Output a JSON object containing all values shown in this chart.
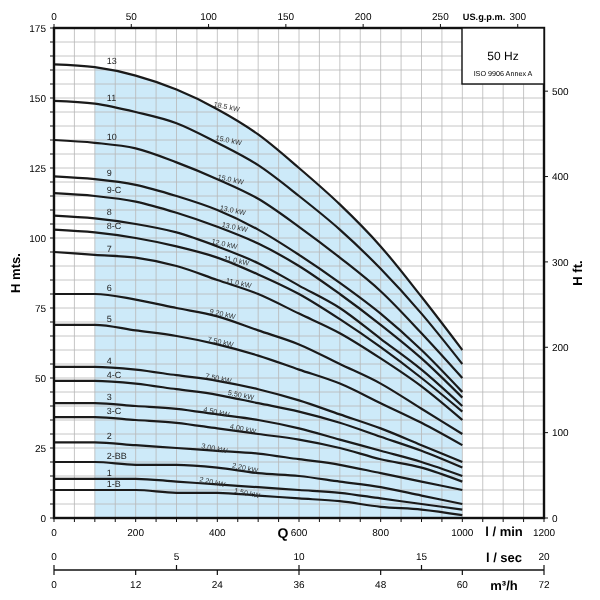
{
  "chart_data": {
    "type": "line",
    "subtitle": "50 Hz",
    "xlabel": "l / min",
    "ylabel": "H mts.",
    "y2label": "H ft.",
    "x2label": "US.g.p.m.",
    "x": [
      0,
      100,
      200,
      300,
      400,
      500,
      600,
      700,
      800,
      900,
      1000
    ],
    "series": [
      {
        "name": "13",
        "color": "#1a1a1a",
        "values": [
          162,
          161,
          158,
          153,
          146,
          137,
          125,
          112,
          97,
          79,
          60
        ]
      },
      {
        "name": "11",
        "color": "#1a1a1a",
        "values": [
          149,
          148,
          145,
          141,
          134,
          126,
          115,
          103,
          89,
          73,
          55
        ]
      },
      {
        "name": "10",
        "color": "#1a1a1a",
        "values": [
          135,
          134,
          132,
          127,
          121,
          114,
          104,
          93,
          81,
          66,
          50
        ]
      },
      {
        "name": "9",
        "color": "#1a1a1a",
        "values": [
          122,
          121,
          119,
          115,
          110,
          103,
          94,
          84,
          73,
          60,
          45
        ]
      },
      {
        "name": "9-C",
        "color": "#1a1a1a",
        "values": [
          116,
          115,
          113,
          109,
          104,
          98,
          90,
          80,
          69,
          57,
          43
        ]
      },
      {
        "name": "8",
        "color": "#1a1a1a",
        "values": [
          108,
          107,
          105,
          102,
          97,
          91,
          83,
          75,
          64,
          53,
          40
        ]
      },
      {
        "name": "8-C",
        "color": "#1a1a1a",
        "values": [
          103,
          102,
          100,
          97,
          93,
          87,
          80,
          71,
          61,
          50,
          38
        ]
      },
      {
        "name": "7",
        "color": "#1a1a1a",
        "values": [
          95,
          94,
          93,
          90,
          85,
          80,
          73,
          66,
          57,
          47,
          35
        ]
      },
      {
        "name": "6",
        "color": "#1a1a1a",
        "values": [
          80,
          80,
          78,
          75,
          72,
          67,
          62,
          55,
          48,
          39,
          30
        ]
      },
      {
        "name": "5",
        "color": "#1a1a1a",
        "values": [
          69,
          69,
          67,
          65,
          62,
          58,
          53,
          48,
          41,
          34,
          26
        ]
      },
      {
        "name": "4",
        "color": "#1a1a1a",
        "values": [
          54,
          54,
          53,
          51,
          49,
          46,
          42,
          37,
          32,
          26,
          20
        ]
      },
      {
        "name": "4-C",
        "color": "#1a1a1a",
        "values": [
          49,
          49,
          48,
          46,
          44,
          41,
          38,
          34,
          29,
          24,
          18
        ]
      },
      {
        "name": "3",
        "color": "#1a1a1a",
        "values": [
          41,
          41,
          40,
          39,
          37,
          35,
          32,
          28,
          24,
          20,
          15
        ]
      },
      {
        "name": "3-C",
        "color": "#1a1a1a",
        "values": [
          36,
          36,
          35,
          34,
          32,
          30,
          28,
          25,
          21,
          18,
          13
        ]
      },
      {
        "name": "2",
        "color": "#1a1a1a",
        "values": [
          27,
          27,
          26,
          25,
          24,
          23,
          21,
          19,
          16,
          13,
          10
        ]
      },
      {
        "name": "2-BB",
        "color": "#1a1a1a",
        "values": [
          20,
          20,
          19,
          19,
          18,
          16,
          15,
          13,
          11,
          8,
          5
        ]
      },
      {
        "name": "1",
        "color": "#1a1a1a",
        "values": [
          14,
          14,
          14,
          13,
          12,
          11,
          10,
          9,
          7,
          5,
          3
        ]
      },
      {
        "name": "1-B",
        "color": "#1a1a1a",
        "values": [
          10,
          10,
          10,
          9,
          9,
          8,
          7,
          6,
          4,
          3,
          1
        ]
      }
    ],
    "bands": [
      {
        "axis": "x",
        "from": 100,
        "to": 1000,
        "color": "#cdeaf9"
      }
    ],
    "xlim": [
      0,
      1200
    ],
    "xticks": [
      0,
      {
        "value": 50,
        "label": null
      },
      {
        "value": 100,
        "label": null
      },
      {
        "value": 150,
        "label": null
      },
      200,
      {
        "value": 250,
        "label": null
      },
      {
        "value": 300,
        "label": null
      },
      {
        "value": 350,
        "label": null
      },
      400,
      {
        "value": 450,
        "label": null
      },
      {
        "value": 500,
        "label": null
      },
      {
        "value": 550,
        "label": null
      },
      600,
      {
        "value": 650,
        "label": null
      },
      {
        "value": 700,
        "label": null
      },
      {
        "value": 750,
        "label": null
      },
      800,
      {
        "value": 850,
        "label": null
      },
      {
        "value": 900,
        "label": null
      },
      {
        "value": 950,
        "label": null
      },
      1000,
      {
        "value": 1050,
        "label": null
      },
      {
        "value": 1100,
        "label": null
      },
      {
        "value": 1150,
        "label": null
      },
      1200
    ],
    "ylim": [
      0,
      175
    ],
    "yticks": [
      0,
      {
        "value": 5,
        "label": null
      },
      {
        "value": 10,
        "label": null
      },
      {
        "value": 15,
        "label": null
      },
      {
        "value": 20,
        "label": null
      },
      25,
      {
        "value": 30,
        "label": null
      },
      {
        "value": 35,
        "label": null
      },
      {
        "value": 40,
        "label": null
      },
      {
        "value": 45,
        "label": null
      },
      50,
      {
        "value": 55,
        "label": null
      },
      {
        "value": 60,
        "label": null
      },
      {
        "value": 65,
        "label": null
      },
      {
        "value": 70,
        "label": null
      },
      75,
      {
        "value": 80,
        "label": null
      },
      {
        "value": 85,
        "label": null
      },
      {
        "value": 90,
        "label": null
      },
      {
        "value": 95,
        "label": null
      },
      100,
      {
        "value": 105,
        "label": null
      },
      {
        "value": 110,
        "label": null
      },
      {
        "value": 115,
        "label": null
      },
      {
        "value": 120,
        "label": null
      },
      125,
      {
        "value": 130,
        "label": null
      },
      {
        "value": 135,
        "label": null
      },
      {
        "value": 140,
        "label": null
      },
      {
        "value": 145,
        "label": null
      },
      150,
      {
        "value": 155,
        "label": null
      },
      {
        "value": 160,
        "label": null
      },
      {
        "value": 165,
        "label": null
      },
      {
        "value": 170,
        "label": null
      },
      175
    ],
    "x2lim": [
      0,
      317
    ],
    "x2ticks": [
      0,
      50,
      100,
      150,
      200,
      250,
      300
    ],
    "y2lim": [
      0,
      574
    ],
    "y2ticks": [
      0,
      100,
      200,
      300,
      400,
      500
    ],
    "grid": true,
    "annotations": [
      "Q",
      "ISO 9906 Annex A",
      "l / sec",
      "0",
      "5",
      "10",
      "15",
      "20",
      "m³/h",
      "0",
      "12",
      "24",
      "36",
      "48",
      "60",
      "72",
      {
        "text": "18.5 kW",
        "x": 390,
        "y": 147
      },
      {
        "text": "15.0 kW",
        "x": 395,
        "y": 135
      },
      {
        "text": "15.0 kW",
        "x": 400,
        "y": 121
      },
      {
        "text": "13.0 kW",
        "x": 405,
        "y": 110
      },
      {
        "text": "13.0 kW",
        "x": 410,
        "y": 104
      },
      {
        "text": "12.0 kW",
        "x": 385,
        "y": 98
      },
      {
        "text": "11.0 kW",
        "x": 415,
        "y": 92
      },
      {
        "text": "11.0 kW",
        "x": 420,
        "y": 84
      },
      {
        "text": "9.20 kW",
        "x": 380,
        "y": 73
      },
      {
        "text": "7.50 kW",
        "x": 375,
        "y": 63
      },
      {
        "text": "7.50 kW",
        "x": 370,
        "y": 50
      },
      {
        "text": "5.50 kW",
        "x": 425,
        "y": 44
      },
      {
        "text": "4.50 kW",
        "x": 365,
        "y": 38
      },
      {
        "text": "4.00 kW",
        "x": 430,
        "y": 32
      },
      {
        "text": "3.00 kW",
        "x": 360,
        "y": 25
      },
      {
        "text": "2.20 kW",
        "x": 435,
        "y": 18
      },
      {
        "text": "2.20 kW",
        "x": 355,
        "y": 13
      },
      {
        "text": "1.50 kW",
        "x": 440,
        "y": 9
      }
    ]
  }
}
